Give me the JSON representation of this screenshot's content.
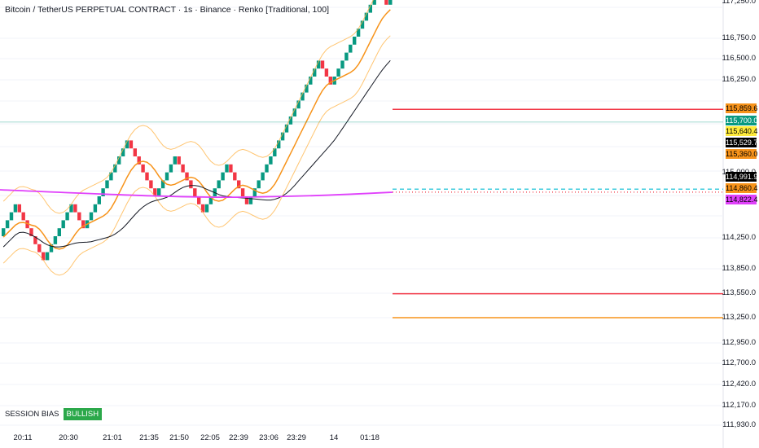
{
  "chart_title": "Bitcoin / TetherUS PERPETUAL CONTRACT · 1s · Binance · Renko [Traditional, 100]",
  "price_axis": [
    "117,250.0",
    "116,750.0",
    "116,500.0",
    "116,250.0",
    "115,000.0",
    "114,250.0",
    "113,850.0",
    "113,550.0",
    "113,250.0",
    "112,950.0",
    "112,700.0",
    "112,420.0",
    "112,170.0",
    "111,930.0"
  ],
  "time_axis": [
    "20:11",
    "20:30",
    "21:01",
    "21:35",
    "21:50",
    "22:05",
    "22:39",
    "23:06",
    "23:29",
    "14",
    "01:18"
  ],
  "price_tags": [
    {
      "text": "115,859.6",
      "bg": "#f7931a",
      "fg": "#000000"
    },
    {
      "text": "115,700.0",
      "bg": "#089981",
      "fg": "#ffffff"
    },
    {
      "text": "115,640.4",
      "bg": "#ffeb3b",
      "fg": "#000000"
    },
    {
      "text": "115,529.7",
      "bg": "#000000",
      "fg": "#ffffff"
    },
    {
      "text": "115,360.0",
      "bg": "#f7931a",
      "fg": "#000000"
    },
    {
      "text": "114,991.9",
      "bg": "#000000",
      "fg": "#ffffff"
    },
    {
      "text": "114,860.4",
      "bg": "#f7931a",
      "fg": "#000000"
    },
    {
      "text": "114,822.4",
      "bg": "#e040fb",
      "fg": "#000000"
    }
  ],
  "session_bias": {
    "label": "SESSION BIAS",
    "value": "BULLISH"
  },
  "colors": {
    "up": "#089981",
    "down": "#f23645",
    "red_level": "#f23645",
    "orange_level": "#f7931a",
    "cyan_level": "#00bcd4",
    "magenta_ma": "#e040fb",
    "band": "#ffb74d",
    "grid": "#f0f3fa"
  },
  "chart_data": {
    "type": "renko",
    "brick_size": 100,
    "bricks": [
      1,
      1,
      1,
      1,
      0,
      0,
      0,
      0,
      0,
      0,
      0,
      1,
      1,
      1,
      1,
      1,
      1,
      1,
      0,
      0,
      0,
      1,
      1,
      1,
      1,
      1,
      1,
      1,
      1,
      1,
      1,
      1,
      0,
      0,
      0,
      0,
      0,
      0,
      0,
      1,
      1,
      1,
      1,
      1,
      0,
      0,
      0,
      0,
      0,
      0,
      0,
      1,
      1,
      1,
      1,
      1,
      1,
      0,
      0,
      0,
      0,
      0,
      1,
      1,
      1,
      1,
      1,
      1,
      1,
      1,
      1,
      1,
      1,
      1,
      1,
      1,
      1,
      1,
      1,
      1,
      0,
      0,
      0,
      1,
      1,
      1,
      1,
      1,
      1,
      1,
      1,
      1,
      1,
      1,
      1,
      0,
      0,
      1
    ],
    "levels": [
      {
        "price": 115859.6,
        "color": "#f23645",
        "style": "solid"
      },
      {
        "price": 115700.0,
        "color": "#089981",
        "style": "thin"
      },
      {
        "price": 114860.4,
        "color": "#00bcd4",
        "style": "dashed"
      },
      {
        "price": 114822.4,
        "color": "#f23645",
        "style": "dotted"
      },
      {
        "price": 113550.0,
        "color": "#f23645",
        "style": "solid"
      },
      {
        "price": 113250.0,
        "color": "#f7931a",
        "style": "solid"
      }
    ]
  }
}
